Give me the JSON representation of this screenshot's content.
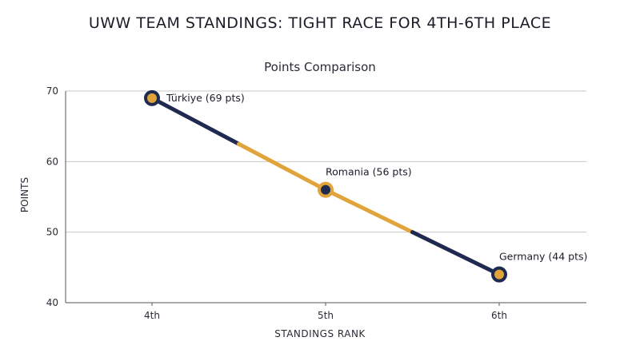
{
  "title": "UWW TEAM STANDINGS: TIGHT RACE FOR 4TH-6TH PLACE",
  "subtitle": "Points Comparison",
  "colors": {
    "navy": "#1f2a50",
    "gold": "#e0a43a",
    "grid": "#c8c8c8",
    "axis": "#555555"
  },
  "chart_data": {
    "type": "line",
    "title": "UWW TEAM STANDINGS: TIGHT RACE FOR 4TH-6TH PLACE",
    "subtitle": "Points Comparison",
    "xlabel": "STANDINGS RANK",
    "ylabel": "POINTS",
    "categories": [
      "4th",
      "5th",
      "6th"
    ],
    "values": [
      69,
      56,
      44
    ],
    "point_labels": [
      "Türkiye (69 pts)",
      "Romania (56 pts)",
      "Germany (44 pts)"
    ],
    "ylim": [
      40,
      70
    ],
    "yticks": [
      40,
      50,
      60,
      70
    ],
    "grid": true
  }
}
